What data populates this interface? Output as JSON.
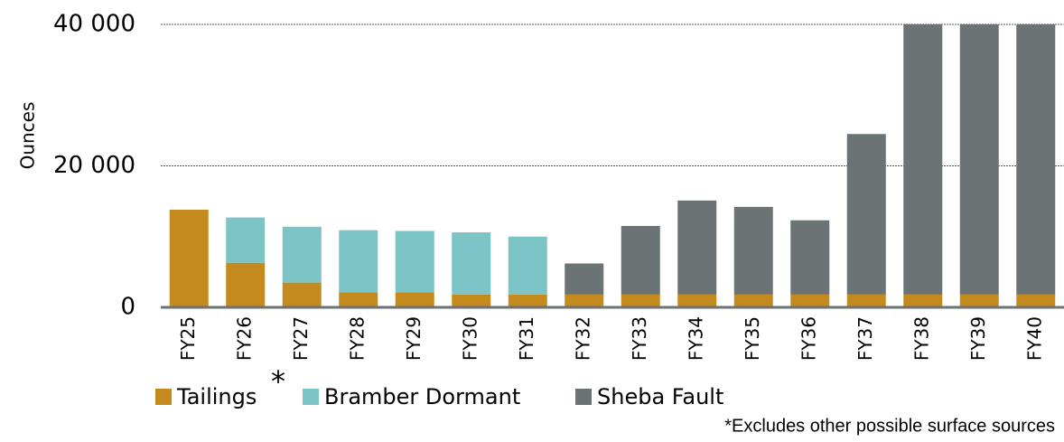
{
  "chart_data": {
    "type": "stacked_bar",
    "y_label": "Ounces",
    "categories": [
      "FY25",
      "FY26",
      "FY27",
      "FY28",
      "FY29",
      "FY30",
      "FY31",
      "FY32",
      "FY33",
      "FY34",
      "FY35",
      "FY36",
      "FY37",
      "FY38",
      "FY39",
      "FY40"
    ],
    "series": [
      {
        "name": "Tailings",
        "color": "#c48a1e",
        "values": [
          13800,
          6300,
          3500,
          2100,
          2100,
          1800,
          1800,
          1800,
          1800,
          1800,
          1800,
          1800,
          1800,
          1800,
          1800,
          1800
        ]
      },
      {
        "name": "Bramber Dormant",
        "color": "#7cc4c6",
        "values": [
          0,
          6400,
          7900,
          8800,
          8700,
          8800,
          8200,
          0,
          0,
          0,
          0,
          0,
          0,
          0,
          0,
          0
        ]
      },
      {
        "name": "Sheba Fault",
        "color": "#6b7375",
        "values": [
          0,
          0,
          0,
          0,
          0,
          0,
          0,
          4400,
          9700,
          13300,
          12400,
          10500,
          22700,
          38200,
          38200,
          38200
        ]
      }
    ],
    "ylim": [
      0,
      40000
    ],
    "yticks": [
      0,
      {
        "value": 20000,
        "label": "20 000"
      },
      {
        "value": 40000,
        "label": "40 000"
      }
    ],
    "grid": true,
    "legend_note": "*",
    "footnote": "*Excludes other possible surface sources"
  }
}
